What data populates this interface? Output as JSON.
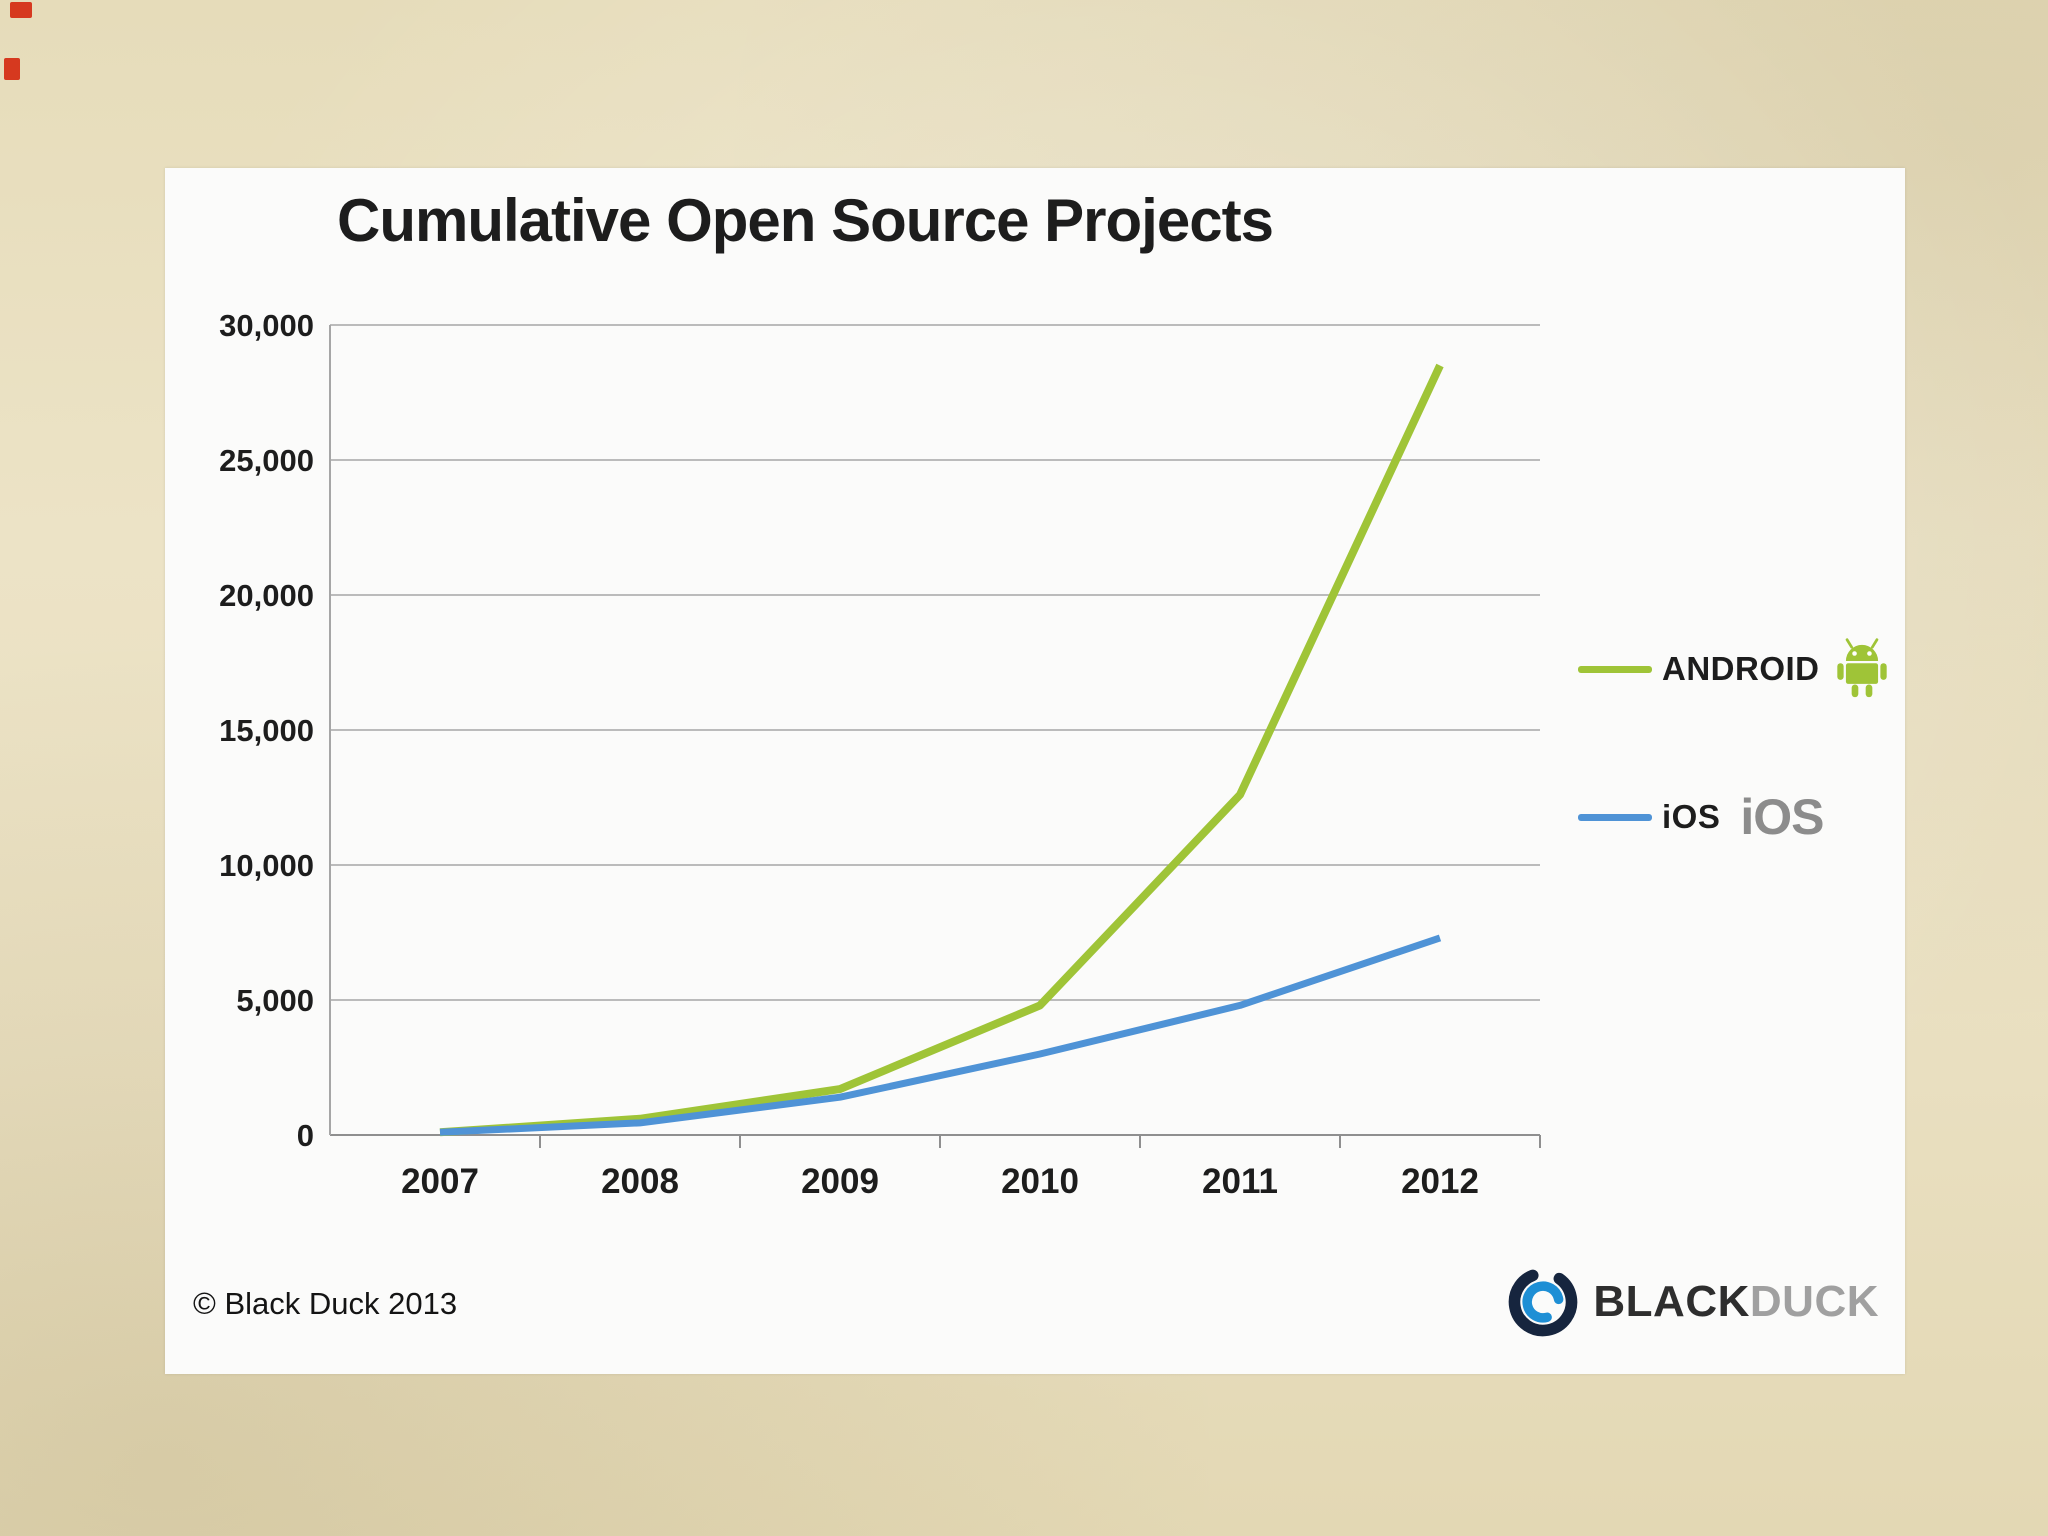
{
  "colors": {
    "android_green": "#9fc437",
    "ios_blue": "#4f93d6",
    "background_beige": "#e9dfc0",
    "card_white": "#fbfbfa",
    "grid_gray": "#a6a6a6",
    "text_dark": "#1d1d1d",
    "logo_navy": "#16253e",
    "logo_blue": "#1e8fd5",
    "logo_gray": "#a0a0a0"
  },
  "slide": {
    "title": "Cumulative Open Source Projects",
    "copyright": "© Black Duck 2013",
    "logo_black": "BLACK",
    "logo_duck": "DUCK"
  },
  "legend": {
    "android_label": "ANDROID",
    "ios_label": "iOS",
    "ios_wordmark": "iOS"
  },
  "chart_data": {
    "type": "line",
    "title": "Cumulative Open Source Projects",
    "categories": [
      "2007",
      "2008",
      "2009",
      "2010",
      "2011",
      "2012"
    ],
    "series": [
      {
        "name": "ANDROID",
        "color": "#9fc437",
        "values": [
          100,
          600,
          1700,
          4800,
          12600,
          28500
        ]
      },
      {
        "name": "iOS",
        "color": "#4f93d6",
        "values": [
          100,
          450,
          1400,
          3000,
          4800,
          7300
        ]
      }
    ],
    "ylim": [
      0,
      30000
    ],
    "ytick_interval": 5000,
    "ytick_labels": [
      "0",
      "5,000",
      "10,000",
      "15,000",
      "20,000",
      "25,000",
      "30,000"
    ],
    "grid": true,
    "legend_position": "right",
    "xlabel": "",
    "ylabel": ""
  }
}
